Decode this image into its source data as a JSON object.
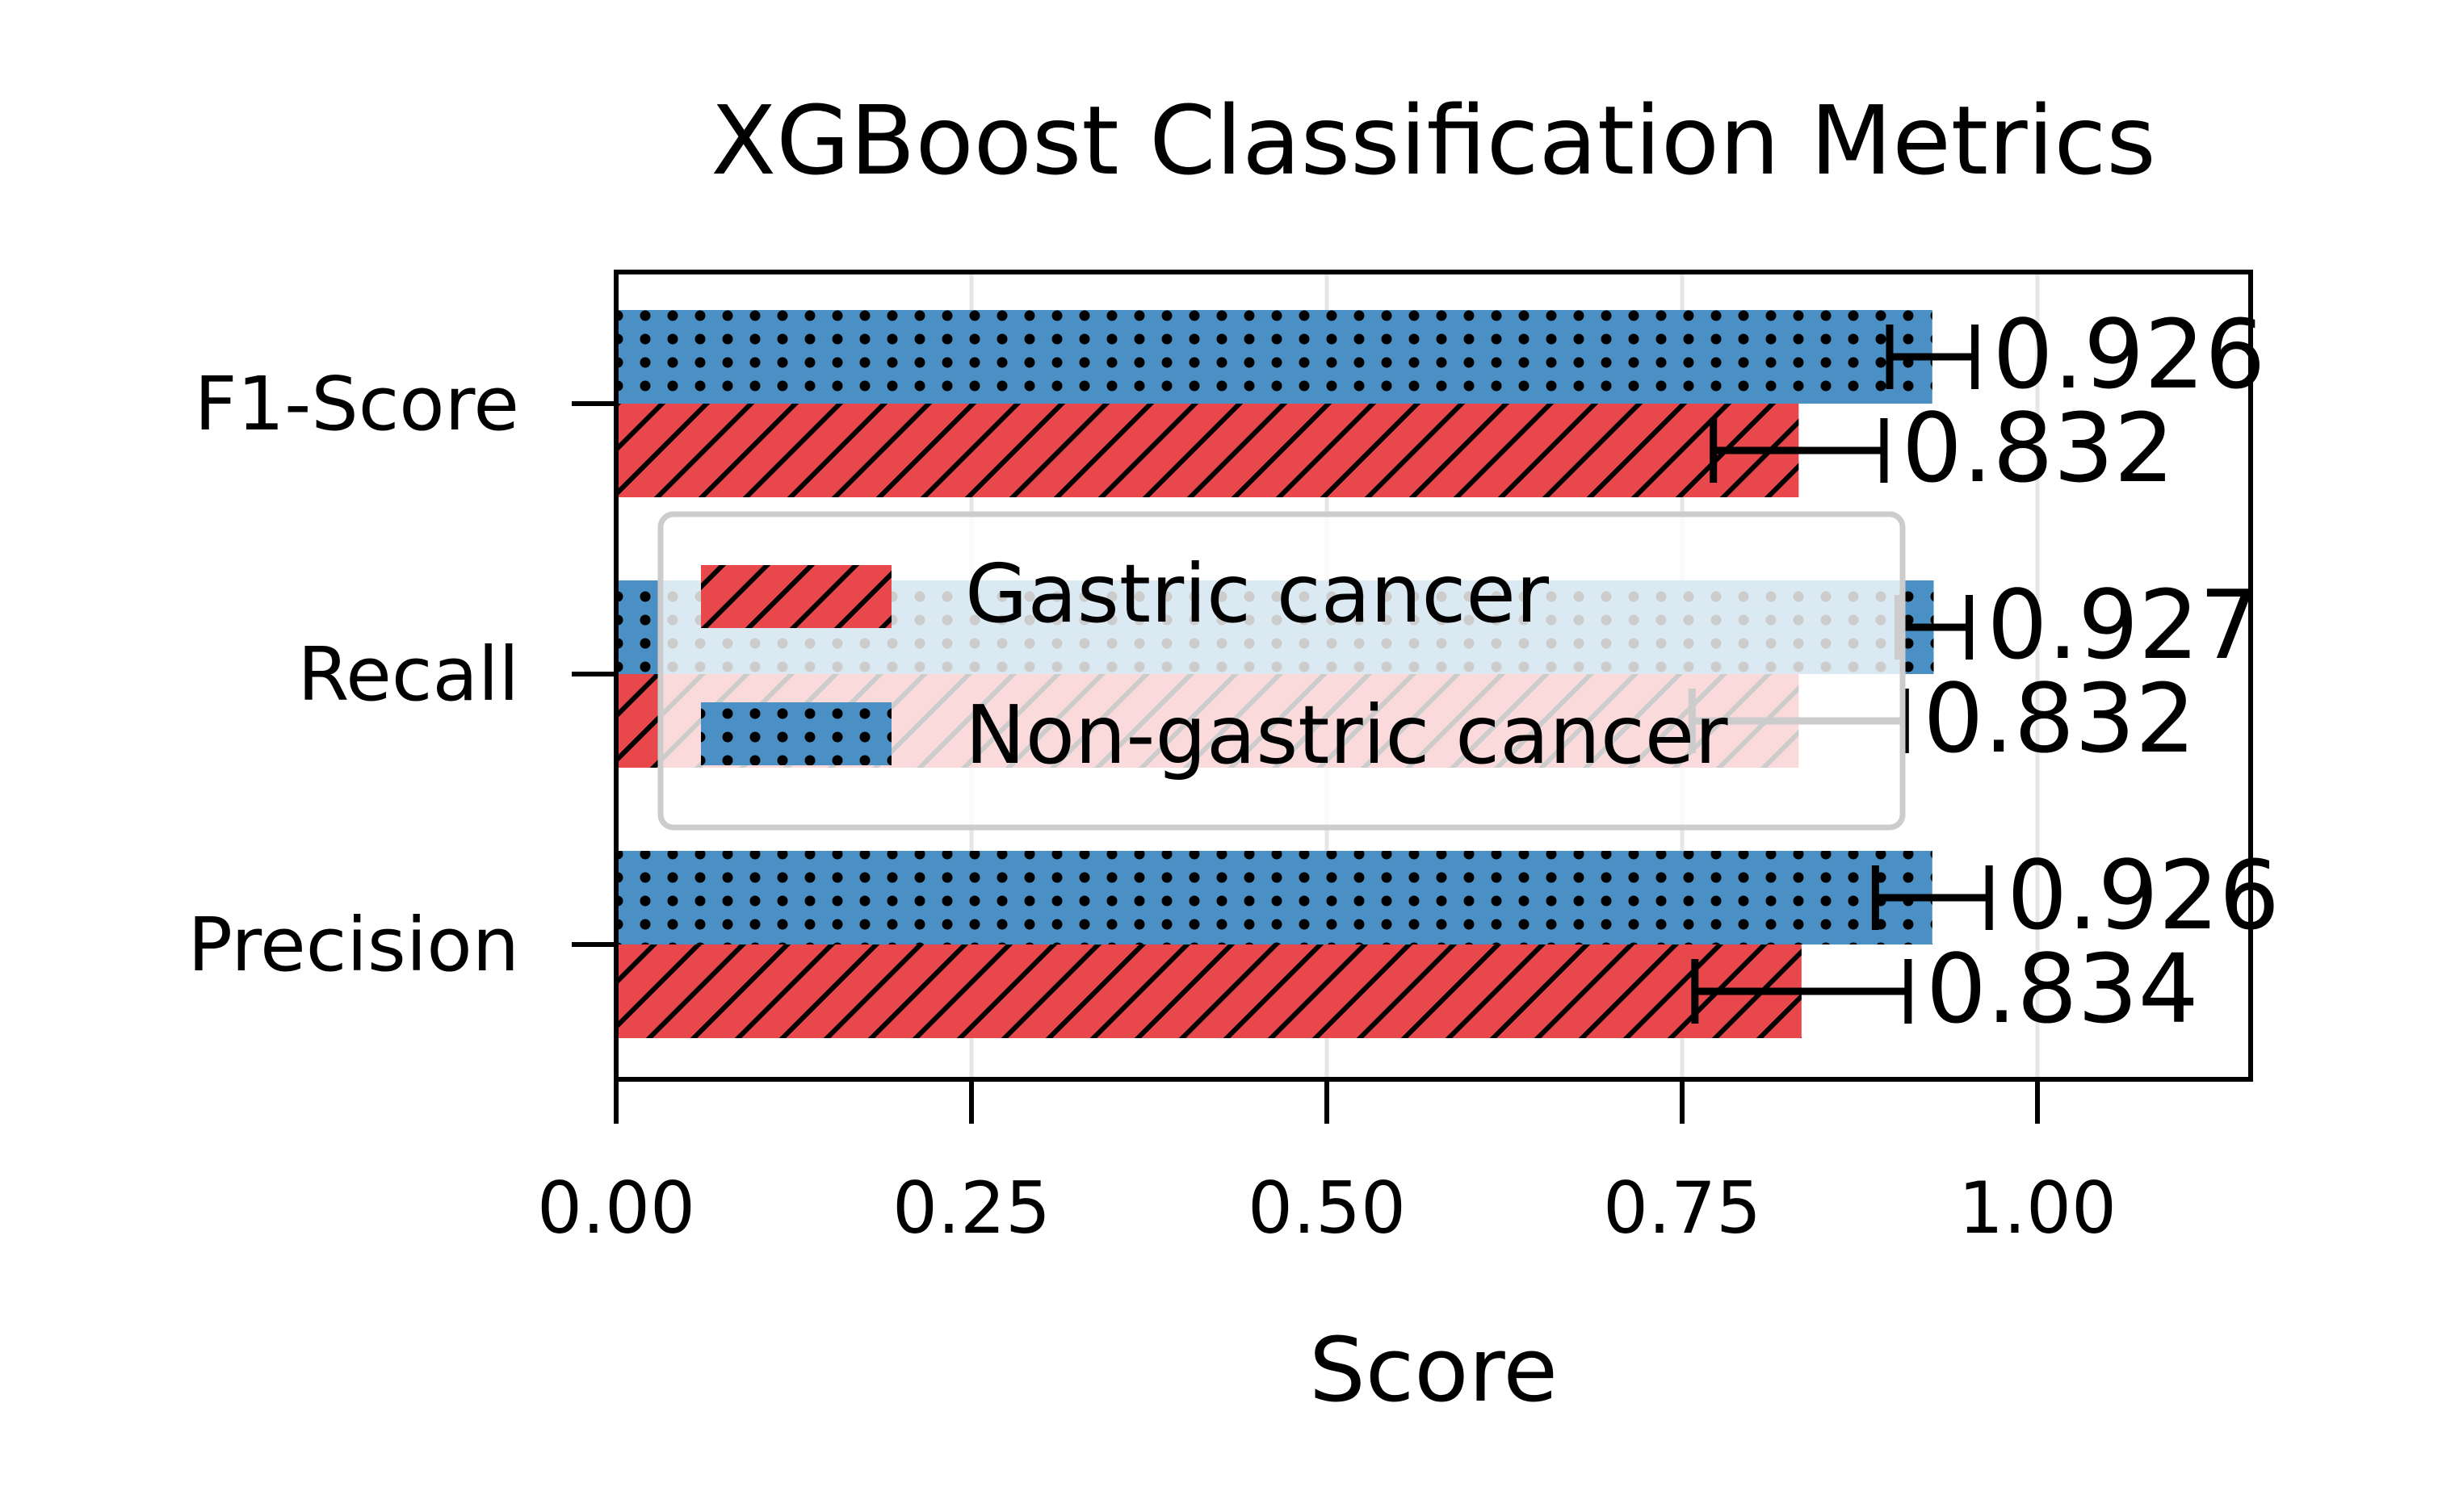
{
  "chart_data": {
    "type": "bar",
    "orientation": "horizontal",
    "title": "XGBoost Classification Metrics",
    "xlabel": "Score",
    "ylabel": "",
    "categories": [
      "Precision",
      "Recall",
      "F1-Score"
    ],
    "xlim": [
      0,
      1.15
    ],
    "xticks": [
      "0.00",
      "0.25",
      "0.50",
      "0.75",
      "1.00"
    ],
    "grid": true,
    "legend_position": "center-left",
    "series": [
      {
        "name": "Gastric cancer",
        "values": [
          0.834,
          0.832,
          0.832
        ],
        "errors": [
          0.075,
          0.075,
          0.06
        ],
        "value_labels": [
          "0.834",
          "0.832",
          "0.832"
        ],
        "color": "#e8474c",
        "hatch": "diagonal"
      },
      {
        "name": "Non-gastric cancer",
        "values": [
          0.926,
          0.927,
          0.926
        ],
        "errors": [
          0.04,
          0.025,
          0.03
        ],
        "value_labels": [
          "0.926",
          "0.927",
          "0.926"
        ],
        "color": "#4b90c4",
        "hatch": "dots"
      }
    ]
  }
}
